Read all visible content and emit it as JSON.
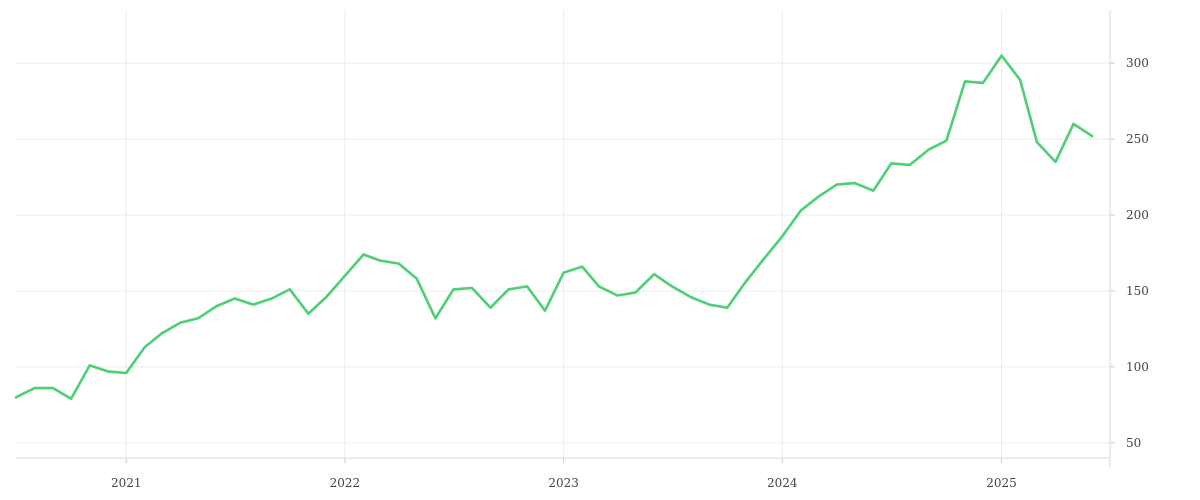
{
  "chart_data": {
    "type": "line",
    "x_axis_type": "date",
    "xlim": [
      "2020-07-01",
      "2025-07-01"
    ],
    "ylim": [
      40,
      335
    ],
    "x_ticks": [
      {
        "date": "2021-01-01",
        "label": "2021"
      },
      {
        "date": "2022-01-01",
        "label": "2022"
      },
      {
        "date": "2023-01-01",
        "label": "2023"
      },
      {
        "date": "2024-01-01",
        "label": "2024"
      },
      {
        "date": "2025-01-01",
        "label": "2025"
      }
    ],
    "y_ticks": [
      50,
      100,
      150,
      200,
      250,
      300
    ],
    "y_axis_side": "right",
    "grid": true,
    "legend": "none",
    "title": "",
    "xlabel": "",
    "ylabel": "",
    "colors": {
      "series": "#4dcf74",
      "grid": "#ececec",
      "axis": "#d9d9d9",
      "text": "#444444"
    },
    "series": [
      {
        "x": [
          "2020-07-01",
          "2020-08-01",
          "2020-09-01",
          "2020-10-01",
          "2020-11-01",
          "2020-12-01",
          "2021-01-01",
          "2021-02-01",
          "2021-03-01",
          "2021-04-01",
          "2021-05-01",
          "2021-06-01",
          "2021-07-01",
          "2021-08-01",
          "2021-09-01",
          "2021-10-01",
          "2021-11-01",
          "2021-12-01",
          "2022-01-01",
          "2022-02-01",
          "2022-03-01",
          "2022-04-01",
          "2022-05-01",
          "2022-06-01",
          "2022-07-01",
          "2022-08-01",
          "2022-09-01",
          "2022-10-01",
          "2022-11-01",
          "2022-12-01",
          "2023-01-01",
          "2023-02-01",
          "2023-03-01",
          "2023-04-01",
          "2023-05-01",
          "2023-06-01",
          "2023-07-01",
          "2023-08-01",
          "2023-09-01",
          "2023-10-01",
          "2023-11-01",
          "2023-12-01",
          "2024-01-01",
          "2024-02-01",
          "2024-03-01",
          "2024-04-01",
          "2024-05-01",
          "2024-06-01",
          "2024-07-01",
          "2024-08-01",
          "2024-09-01",
          "2024-10-01",
          "2024-11-01",
          "2024-12-01",
          "2025-01-01",
          "2025-02-01",
          "2025-03-01",
          "2025-04-01",
          "2025-05-01",
          "2025-06-01"
        ],
        "y": [
          80,
          86,
          86,
          79,
          101,
          97,
          96,
          113,
          122,
          129,
          132,
          140,
          145,
          141,
          145,
          151,
          135,
          146,
          160,
          174,
          170,
          168,
          158,
          132,
          151,
          152,
          139,
          151,
          153,
          137,
          162,
          166,
          153,
          147,
          149,
          161,
          153,
          146,
          141,
          139,
          156,
          171,
          186,
          203,
          212,
          220,
          221,
          216,
          234,
          233,
          243,
          249,
          288,
          287,
          305,
          289,
          248,
          235,
          260,
          252
        ]
      }
    ]
  }
}
